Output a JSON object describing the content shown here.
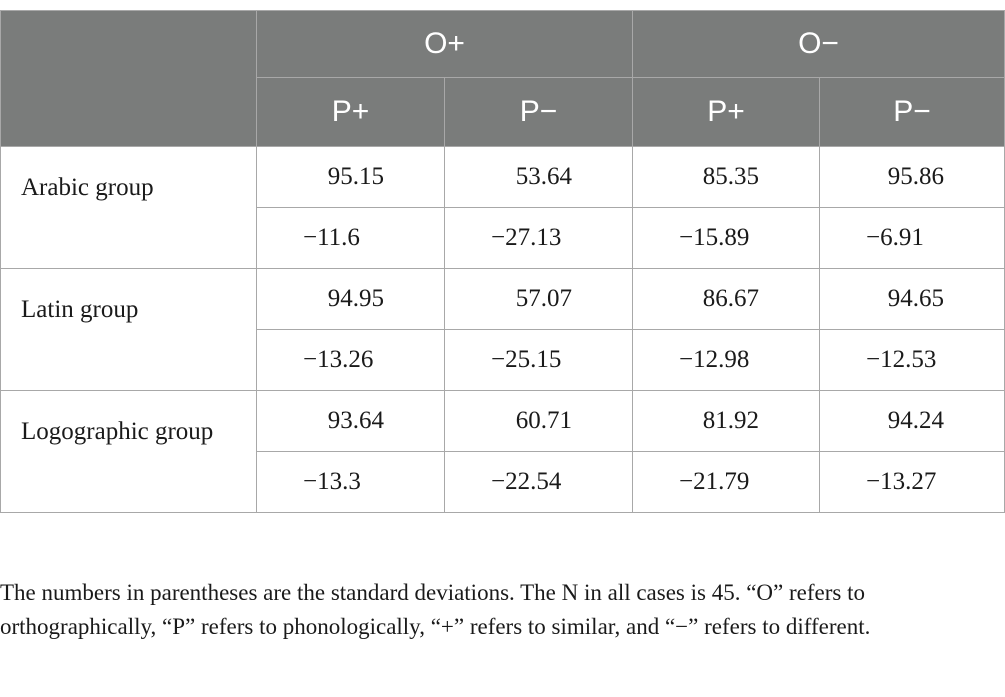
{
  "table": {
    "orthography_headers": [
      "O+",
      "O−"
    ],
    "phonology_headers": [
      "P+",
      "P−",
      "P+",
      "P−"
    ],
    "groups": [
      {
        "label": "Arabic group",
        "means": [
          "95.15",
          "53.64",
          "85.35",
          "95.86"
        ],
        "sds": [
          "−11.6",
          "−27.13",
          "−15.89",
          "−6.91"
        ]
      },
      {
        "label": "Latin group",
        "means": [
          "94.95",
          "57.07",
          "86.67",
          "94.65"
        ],
        "sds": [
          "−13.26",
          "−25.15",
          "−12.98",
          "−12.53"
        ]
      },
      {
        "label": "Logographic group",
        "means": [
          "93.64",
          "60.71",
          "81.92",
          "94.24"
        ],
        "sds": [
          "−13.3",
          "−22.54",
          "−21.79",
          "−13.27"
        ]
      }
    ]
  },
  "footnote": "The numbers in parentheses are the standard deviations. The N in all cases is 45. “O” refers to orthographically, “P” refers to phonologically, “+” refers to similar, and “−” refers to different."
}
